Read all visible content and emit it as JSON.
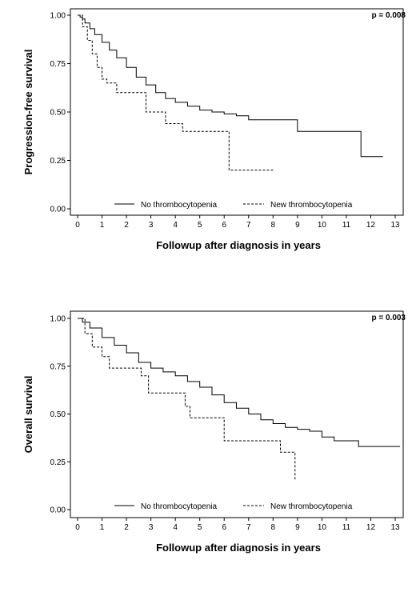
{
  "chart_data": [
    {
      "type": "line",
      "subtype": "kaplan-meier-step",
      "title": "",
      "xlabel": "Followup after diagnosis in years",
      "ylabel": "Progression-free survival",
      "annotation": "p = 0.008",
      "xlim": [
        0,
        13
      ],
      "ylim": [
        0,
        1
      ],
      "xticks": [
        "0",
        "1",
        "2",
        "3",
        "4",
        "5",
        "6",
        "7",
        "8",
        "9",
        "10",
        "11",
        "12",
        "13"
      ],
      "yticks": [
        "0.00",
        "0.25",
        "0.50",
        "0.75",
        "1.00"
      ],
      "legend_position": "bottom-center",
      "grid": false,
      "series": [
        {
          "name": "No thrombocytopenia",
          "style": "solid",
          "points": [
            [
              0,
              1.0
            ],
            [
              0.1,
              0.99
            ],
            [
              0.2,
              0.98
            ],
            [
              0.3,
              0.96
            ],
            [
              0.5,
              0.93
            ],
            [
              0.7,
              0.9
            ],
            [
              1.0,
              0.86
            ],
            [
              1.3,
              0.82
            ],
            [
              1.6,
              0.78
            ],
            [
              2.0,
              0.73
            ],
            [
              2.4,
              0.68
            ],
            [
              2.8,
              0.64
            ],
            [
              3.2,
              0.6
            ],
            [
              3.6,
              0.57
            ],
            [
              4.0,
              0.55
            ],
            [
              4.5,
              0.53
            ],
            [
              5.0,
              0.51
            ],
            [
              5.5,
              0.5
            ],
            [
              6.0,
              0.49
            ],
            [
              6.5,
              0.48
            ],
            [
              7.0,
              0.46
            ],
            [
              8.5,
              0.46
            ],
            [
              9.0,
              0.4
            ],
            [
              11.0,
              0.4
            ],
            [
              11.6,
              0.27
            ],
            [
              12.5,
              0.27
            ]
          ]
        },
        {
          "name": "New thrombocytopenia",
          "style": "dashed",
          "points": [
            [
              0,
              1.0
            ],
            [
              0.2,
              0.94
            ],
            [
              0.4,
              0.87
            ],
            [
              0.6,
              0.8
            ],
            [
              0.8,
              0.73
            ],
            [
              1.0,
              0.67
            ],
            [
              1.2,
              0.65
            ],
            [
              1.6,
              0.6
            ],
            [
              2.0,
              0.6
            ],
            [
              2.6,
              0.6
            ],
            [
              2.8,
              0.5
            ],
            [
              3.4,
              0.5
            ],
            [
              3.6,
              0.44
            ],
            [
              4.2,
              0.44
            ],
            [
              4.3,
              0.4
            ],
            [
              5.0,
              0.4
            ],
            [
              6.1,
              0.4
            ],
            [
              6.2,
              0.2
            ],
            [
              8.0,
              0.2
            ]
          ]
        }
      ]
    },
    {
      "type": "line",
      "subtype": "kaplan-meier-step",
      "title": "",
      "xlabel": "Followup after diagnosis in years",
      "ylabel": "Overall survival",
      "annotation": "p = 0.003",
      "xlim": [
        0,
        13
      ],
      "ylim": [
        0,
        1
      ],
      "xticks": [
        "0",
        "1",
        "2",
        "3",
        "4",
        "5",
        "6",
        "7",
        "8",
        "9",
        "10",
        "11",
        "12",
        "13"
      ],
      "yticks": [
        "0.00",
        "0.25",
        "0.50",
        "0.75",
        "1.00"
      ],
      "legend_position": "bottom-center",
      "grid": false,
      "series": [
        {
          "name": "No thrombocytopenia",
          "style": "solid",
          "points": [
            [
              0,
              1.0
            ],
            [
              0.2,
              0.98
            ],
            [
              0.5,
              0.95
            ],
            [
              1.0,
              0.9
            ],
            [
              1.5,
              0.86
            ],
            [
              2.0,
              0.82
            ],
            [
              2.5,
              0.77
            ],
            [
              3.0,
              0.74
            ],
            [
              3.5,
              0.72
            ],
            [
              4.0,
              0.7
            ],
            [
              4.5,
              0.67
            ],
            [
              5.0,
              0.64
            ],
            [
              5.5,
              0.6
            ],
            [
              6.0,
              0.56
            ],
            [
              6.5,
              0.53
            ],
            [
              7.0,
              0.5
            ],
            [
              7.5,
              0.47
            ],
            [
              8.0,
              0.45
            ],
            [
              8.5,
              0.43
            ],
            [
              9.0,
              0.42
            ],
            [
              9.5,
              0.41
            ],
            [
              10.0,
              0.38
            ],
            [
              10.5,
              0.36
            ],
            [
              11.0,
              0.36
            ],
            [
              11.5,
              0.33
            ],
            [
              13.2,
              0.33
            ]
          ]
        },
        {
          "name": "New thrombocytopenia",
          "style": "dashed",
          "points": [
            [
              0,
              1.0
            ],
            [
              0.3,
              0.92
            ],
            [
              0.6,
              0.85
            ],
            [
              1.0,
              0.8
            ],
            [
              1.3,
              0.74
            ],
            [
              2.0,
              0.74
            ],
            [
              2.6,
              0.7
            ],
            [
              2.9,
              0.61
            ],
            [
              3.5,
              0.61
            ],
            [
              4.1,
              0.61
            ],
            [
              4.4,
              0.54
            ],
            [
              4.6,
              0.48
            ],
            [
              5.5,
              0.48
            ],
            [
              5.9,
              0.48
            ],
            [
              6.0,
              0.36
            ],
            [
              7.5,
              0.36
            ],
            [
              8.2,
              0.36
            ],
            [
              8.3,
              0.3
            ],
            [
              8.8,
              0.3
            ],
            [
              8.9,
              0.15
            ]
          ]
        }
      ]
    }
  ]
}
